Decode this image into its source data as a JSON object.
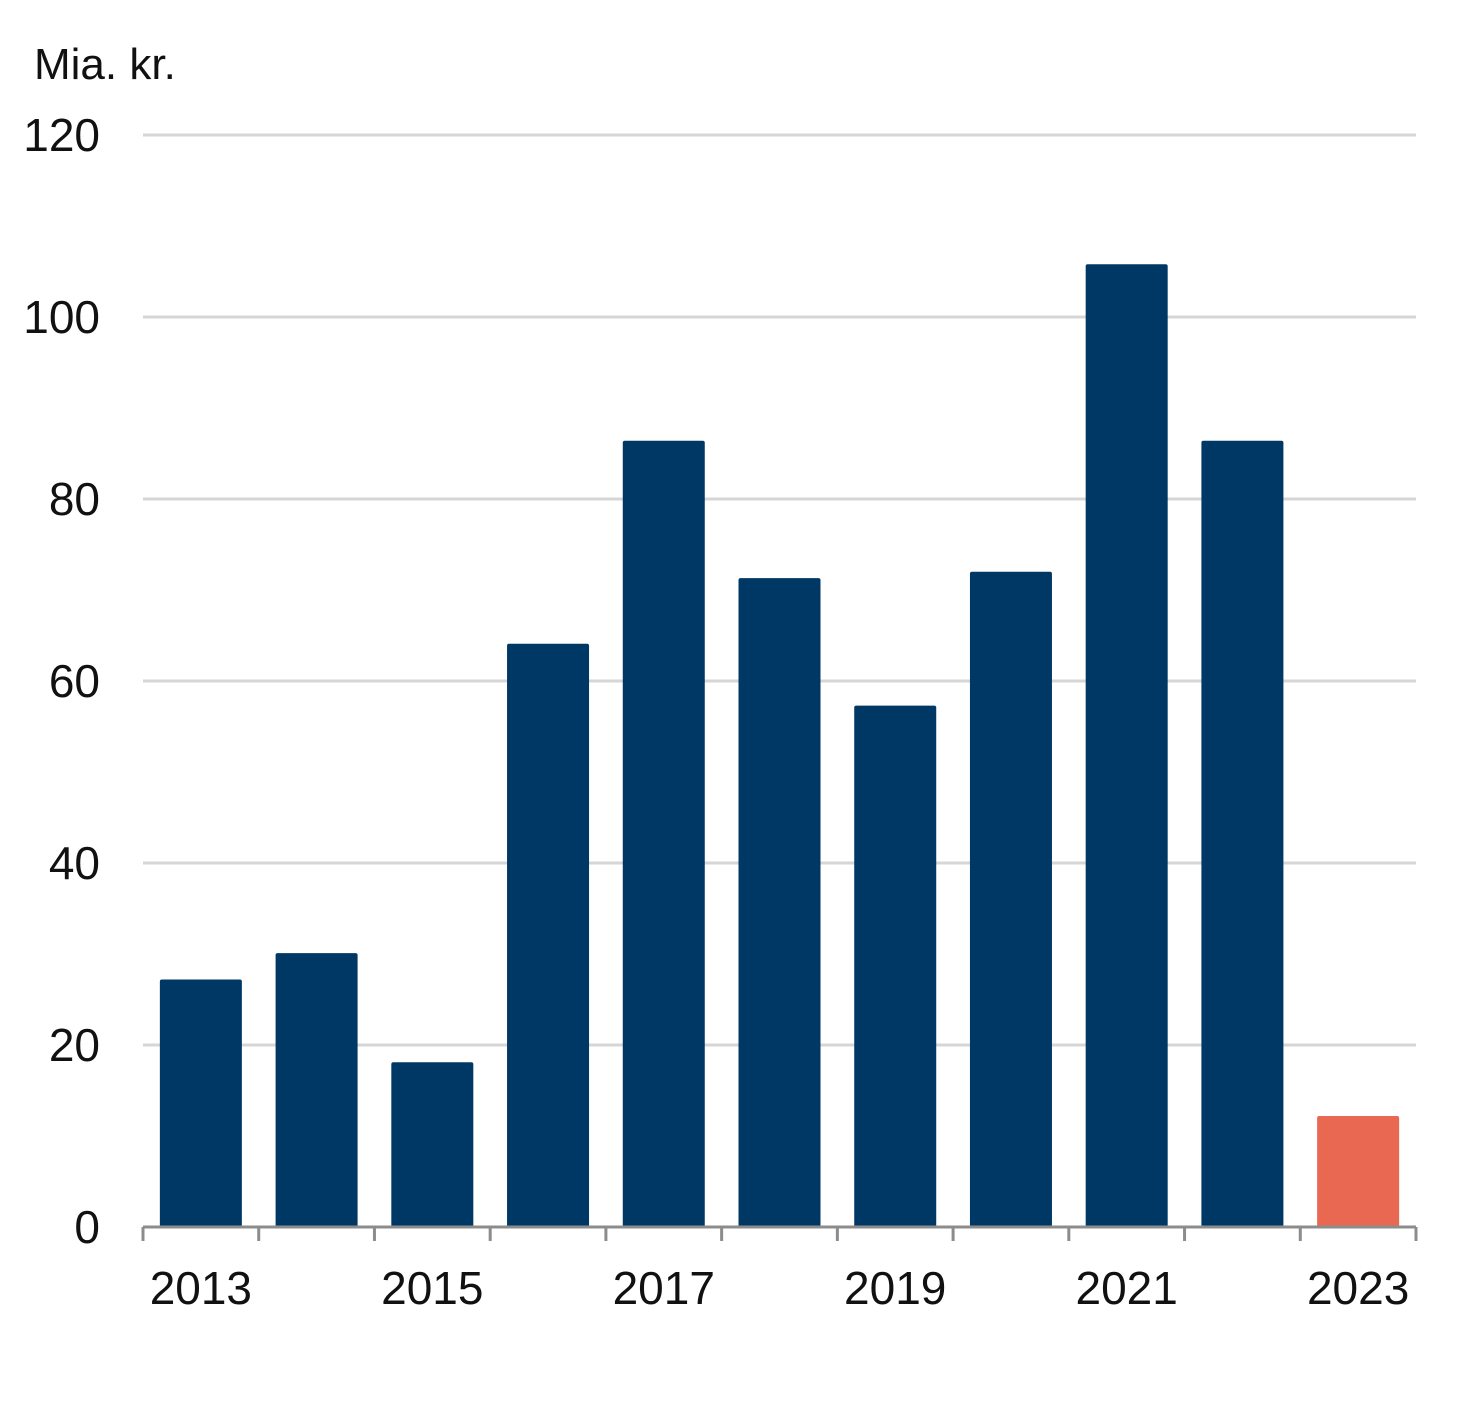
{
  "chart_data": {
    "type": "bar",
    "title": "",
    "xlabel": "",
    "ylabel": "Mia. kr.",
    "unit_label": "Mia. kr.",
    "categories": [
      "2013",
      "2014",
      "2015",
      "2016",
      "2017",
      "2018",
      "2019",
      "2020",
      "2021",
      "2022",
      "2023"
    ],
    "values": [
      27.2,
      30.1,
      18.1,
      64.1,
      86.4,
      71.3,
      57.3,
      72.0,
      105.8,
      86.4,
      12.2
    ],
    "x_tick_labels": [
      "2013",
      "2015",
      "2017",
      "2019",
      "2021",
      "2023"
    ],
    "y_ticks": [
      0,
      20,
      40,
      60,
      80,
      100,
      120
    ],
    "ylim": [
      0,
      120
    ],
    "grid": true,
    "legend": "none",
    "colors": {
      "default_bar": "#003865",
      "highlight_bar": "#e96852",
      "highlight_categories": [
        "2023"
      ],
      "gridline": "#d6d6d6",
      "axis": "#8c8c8c"
    }
  }
}
